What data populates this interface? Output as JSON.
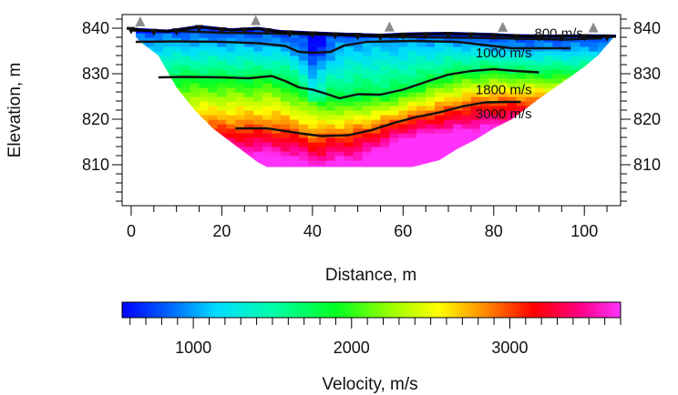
{
  "chart_data": [
    {
      "type": "heatmap",
      "title": "",
      "xlabel": "Distance, m",
      "ylabel": "Elevation, m",
      "xlim": [
        -2,
        108
      ],
      "ylim": [
        801,
        843
      ],
      "x_ticks": [
        0,
        20,
        40,
        60,
        80,
        100
      ],
      "x_tick_labels": [
        "0",
        "20",
        "40",
        "60",
        "80",
        "100"
      ],
      "y_ticks": [
        810,
        820,
        830,
        840
      ],
      "y_tick_labels": [
        "810",
        "820",
        "830",
        "840"
      ],
      "colors": {
        "surface_line": "#000000",
        "contour": "#111111",
        "source_marker": "#8c8c8c",
        "receiver_marker": "#111111"
      },
      "surface": [
        [
          -1,
          840.0
        ],
        [
          2,
          839.6
        ],
        [
          8,
          839.3
        ],
        [
          15,
          840.3
        ],
        [
          22,
          839.6
        ],
        [
          28,
          839.9
        ],
        [
          33,
          839.2
        ],
        [
          40,
          838.9
        ],
        [
          48,
          838.6
        ],
        [
          55,
          838.4
        ],
        [
          62,
          838.7
        ],
        [
          70,
          838.8
        ],
        [
          78,
          838.6
        ],
        [
          85,
          838.3
        ],
        [
          93,
          838.2
        ],
        [
          100,
          838.3
        ],
        [
          107,
          838.2
        ]
      ],
      "bottom_boundary": [
        [
          2,
          837.0
        ],
        [
          6,
          834.0
        ],
        [
          10,
          827.0
        ],
        [
          14,
          822.0
        ],
        [
          18,
          818.0
        ],
        [
          22,
          815.0
        ],
        [
          24,
          813.5
        ],
        [
          26,
          812.0
        ],
        [
          28,
          810.5
        ],
        [
          30,
          809.5
        ],
        [
          62,
          809.5
        ],
        [
          68,
          811.0
        ],
        [
          72,
          813.5
        ],
        [
          76,
          815.5
        ],
        [
          80,
          818.0
        ],
        [
          84,
          820.0
        ],
        [
          86,
          821.5
        ],
        [
          90,
          824.5
        ],
        [
          95,
          828.0
        ],
        [
          100,
          831.5
        ],
        [
          103,
          834.0
        ],
        [
          106,
          837.5
        ]
      ],
      "sources_x": [
        2,
        27.5,
        57,
        82,
        102
      ],
      "receivers_x": [
        0,
        5,
        10,
        15,
        20,
        25,
        30,
        35,
        40,
        45,
        50,
        55,
        60,
        65,
        70,
        75,
        80,
        85,
        90,
        95,
        100,
        105
      ],
      "contours": [
        {
          "label": "800 m/s",
          "label_pos": [
            89,
            837.9
          ],
          "points": [
            [
              0,
              839.5
            ],
            [
              10,
              839.4
            ],
            [
              20,
              839.0
            ],
            [
              28,
              838.9
            ],
            [
              38,
              838.7
            ],
            [
              48,
              838.4
            ],
            [
              58,
              838.1
            ],
            [
              66,
              838.0
            ],
            [
              76,
              837.9
            ],
            [
              86,
              837.7
            ],
            [
              96,
              837.5
            ],
            [
              104,
              837.8
            ]
          ]
        },
        {
          "label": "1000 m/s",
          "label_pos": [
            76,
            833.6
          ],
          "points": [
            [
              1,
              837.0
            ],
            [
              10,
              837.1
            ],
            [
              20,
              837.0
            ],
            [
              28,
              836.7
            ],
            [
              34,
              836.1
            ],
            [
              37,
              834.8
            ],
            [
              40,
              834.6
            ],
            [
              44,
              834.8
            ],
            [
              47,
              836.2
            ],
            [
              52,
              837.0
            ],
            [
              62,
              837.2
            ],
            [
              72,
              837.0
            ],
            [
              78,
              836.3
            ],
            [
              84,
              835.6
            ],
            [
              92,
              835.6
            ],
            [
              97,
              835.6
            ]
          ]
        },
        {
          "label": "1800 m/s",
          "label_pos": [
            76,
            825.5
          ],
          "points": [
            [
              6,
              829.2
            ],
            [
              12,
              829.3
            ],
            [
              20,
              829.2
            ],
            [
              26,
              829.0
            ],
            [
              31,
              829.5
            ],
            [
              34,
              828.4
            ],
            [
              37,
              827.0
            ],
            [
              40,
              826.5
            ],
            [
              43,
              825.6
            ],
            [
              46,
              824.6
            ],
            [
              50,
              825.5
            ],
            [
              55,
              825.4
            ],
            [
              60,
              826.5
            ],
            [
              65,
              828.2
            ],
            [
              70,
              829.8
            ],
            [
              75,
              830.6
            ],
            [
              80,
              831.0
            ],
            [
              85,
              830.6
            ],
            [
              90,
              830.3
            ]
          ]
        },
        {
          "label": "3000 m/s",
          "label_pos": [
            76,
            820.2
          ],
          "points": [
            [
              23,
              818.0
            ],
            [
              30,
              818.0
            ],
            [
              38,
              816.8
            ],
            [
              42,
              816.3
            ],
            [
              48,
              816.5
            ],
            [
              53,
              817.6
            ],
            [
              58,
              819.2
            ],
            [
              63,
              820.5
            ],
            [
              68,
              821.5
            ],
            [
              73,
              822.8
            ],
            [
              78,
              823.7
            ],
            [
              83,
              823.8
            ],
            [
              86,
              823.8
            ]
          ]
        }
      ]
    },
    {
      "type": "colorbar",
      "title": "",
      "xlabel": "Velocity, m/s",
      "range": [
        550,
        3700
      ],
      "ticks": [
        1000,
        2000,
        3000
      ],
      "tick_labels": [
        "1000",
        "2000",
        "3000"
      ],
      "minor_step": 100,
      "color_stops": [
        {
          "v": 550,
          "color": "#0000ff"
        },
        {
          "v": 850,
          "color": "#0066ff"
        },
        {
          "v": 1150,
          "color": "#00ddff"
        },
        {
          "v": 1500,
          "color": "#00ffaa"
        },
        {
          "v": 1900,
          "color": "#00ff22"
        },
        {
          "v": 2250,
          "color": "#9dff00"
        },
        {
          "v": 2550,
          "color": "#ffff00"
        },
        {
          "v": 2850,
          "color": "#ff8800"
        },
        {
          "v": 3150,
          "color": "#ff0000"
        },
        {
          "v": 3450,
          "color": "#ff0088"
        },
        {
          "v": 3700,
          "color": "#ff33ff"
        }
      ]
    }
  ]
}
